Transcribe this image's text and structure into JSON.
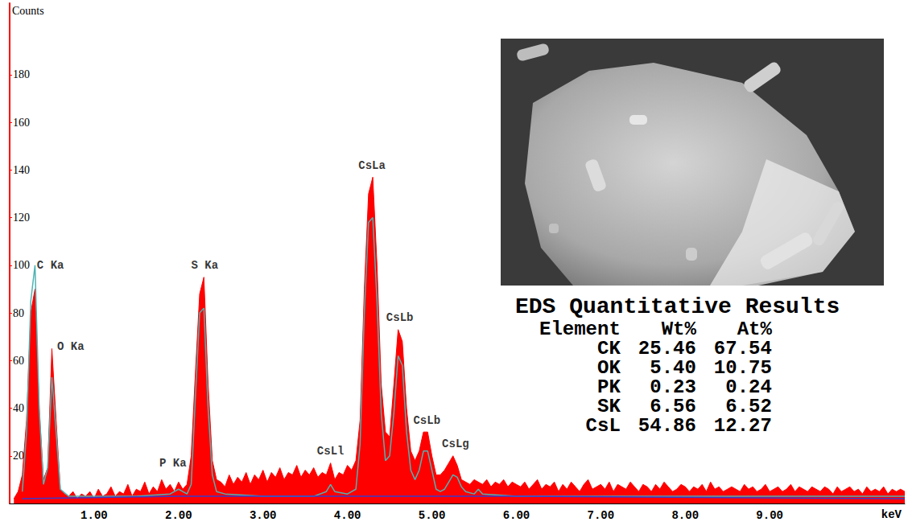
{
  "chart_data": {
    "type": "line",
    "xlabel": "keV",
    "ylabel": "Counts",
    "xlim": [
      0,
      10.6
    ],
    "ylim": [
      0,
      210
    ],
    "xticks": [
      {
        "value": 1,
        "label": "1.00"
      },
      {
        "value": 2,
        "label": "2.00"
      },
      {
        "value": 3,
        "label": "3.00"
      },
      {
        "value": 4,
        "label": "4.00"
      },
      {
        "value": 5,
        "label": "5.00"
      },
      {
        "value": 6,
        "label": "6.00"
      },
      {
        "value": 7,
        "label": "7.00"
      },
      {
        "value": 8,
        "label": "8.00"
      },
      {
        "value": 9,
        "label": "9.00"
      }
    ],
    "yticks": [
      20,
      40,
      60,
      80,
      100,
      120,
      140,
      160,
      180
    ],
    "grid": false,
    "series": [
      {
        "type": "area",
        "color": "#ff0000",
        "x": [
          0.05,
          0.1,
          0.15,
          0.2,
          0.25,
          0.3,
          0.35,
          0.4,
          0.45,
          0.5,
          0.55,
          0.6,
          0.65,
          0.7,
          0.75,
          0.8,
          0.85,
          0.9,
          0.95,
          1.0,
          1.05,
          1.1,
          1.15,
          1.2,
          1.25,
          1.3,
          1.35,
          1.4,
          1.45,
          1.5,
          1.55,
          1.6,
          1.65,
          1.7,
          1.75,
          1.8,
          1.85,
          1.9,
          1.95,
          2.0,
          2.05,
          2.1,
          2.15,
          2.2,
          2.25,
          2.3,
          2.35,
          2.4,
          2.45,
          2.5,
          2.55,
          2.6,
          2.65,
          2.7,
          2.75,
          2.8,
          2.85,
          2.9,
          2.95,
          3.0,
          3.05,
          3.1,
          3.15,
          3.2,
          3.25,
          3.3,
          3.35,
          3.4,
          3.45,
          3.5,
          3.55,
          3.6,
          3.65,
          3.7,
          3.75,
          3.8,
          3.85,
          3.9,
          3.95,
          4.0,
          4.05,
          4.1,
          4.15,
          4.2,
          4.25,
          4.3,
          4.35,
          4.4,
          4.45,
          4.5,
          4.55,
          4.6,
          4.65,
          4.7,
          4.75,
          4.8,
          4.85,
          4.9,
          4.95,
          5.0,
          5.05,
          5.1,
          5.15,
          5.2,
          5.25,
          5.3,
          5.35,
          5.4,
          5.45,
          5.5,
          5.55,
          5.6,
          5.65,
          5.7,
          5.75,
          5.8,
          5.85,
          5.9,
          5.95,
          6.0,
          6.05,
          6.1,
          6.15,
          6.2,
          6.25,
          6.3,
          6.35,
          6.4,
          6.45,
          6.5,
          6.55,
          6.6,
          6.65,
          6.7,
          6.75,
          6.8,
          6.85,
          6.9,
          6.95,
          7.0,
          7.05,
          7.1,
          7.15,
          7.2,
          7.25,
          7.3,
          7.35,
          7.4,
          7.45,
          7.5,
          7.55,
          7.6,
          7.65,
          7.7,
          7.75,
          7.8,
          7.85,
          7.9,
          7.95,
          8.0,
          8.05,
          8.1,
          8.15,
          8.2,
          8.25,
          8.3,
          8.35,
          8.4,
          8.45,
          8.5,
          8.55,
          8.6,
          8.65,
          8.7,
          8.75,
          8.8,
          8.85,
          8.9,
          8.95,
          9.0,
          9.05,
          9.1,
          9.15,
          9.2,
          9.25,
          9.3,
          9.35,
          9.4,
          9.45,
          9.5,
          9.55,
          9.6,
          9.65,
          9.7,
          9.75,
          9.8,
          9.85,
          9.9,
          9.95,
          10.0,
          10.05,
          10.1,
          10.15,
          10.2,
          10.25,
          10.3,
          10.35,
          10.4,
          10.45,
          10.5,
          10.55,
          10.6
        ],
        "values": [
          2,
          5,
          12,
          35,
          80,
          90,
          40,
          10,
          15,
          65,
          35,
          6,
          4,
          3,
          5,
          2,
          4,
          3,
          5,
          2,
          6,
          3,
          4,
          7,
          3,
          5,
          4,
          8,
          3,
          6,
          5,
          9,
          4,
          7,
          5,
          10,
          6,
          8,
          5,
          9,
          6,
          8,
          20,
          55,
          88,
          95,
          50,
          18,
          10,
          9,
          7,
          12,
          8,
          11,
          9,
          13,
          8,
          12,
          10,
          14,
          9,
          13,
          11,
          15,
          10,
          13,
          12,
          16,
          11,
          14,
          12,
          15,
          11,
          13,
          12,
          17,
          10,
          13,
          12,
          16,
          14,
          18,
          35,
          90,
          130,
          137,
          100,
          50,
          30,
          28,
          50,
          73,
          68,
          40,
          22,
          18,
          22,
          30,
          30,
          20,
          12,
          12,
          14,
          17,
          20,
          16,
          10,
          9,
          8,
          10,
          9,
          8,
          10,
          7,
          9,
          8,
          10,
          7,
          9,
          8,
          7,
          9,
          6,
          8,
          10,
          6,
          8,
          7,
          9,
          5,
          8,
          6,
          9,
          7,
          5,
          8,
          10,
          6,
          7,
          8,
          6,
          9,
          5,
          8,
          7,
          6,
          9,
          7,
          5,
          8,
          7,
          5,
          8,
          6,
          9,
          7,
          5,
          6,
          8,
          7,
          5,
          7,
          6,
          8,
          5,
          9,
          6,
          7,
          5,
          6,
          7,
          6,
          5,
          8,
          6,
          7,
          5,
          6,
          8,
          5,
          6,
          7,
          5,
          6,
          8,
          5,
          7,
          6,
          5,
          7,
          6,
          5,
          7,
          6,
          4,
          7,
          5,
          6,
          7,
          5,
          6,
          4,
          7,
          5,
          6,
          5,
          7,
          4,
          6,
          5,
          6,
          5
        ]
      },
      {
        "type": "line",
        "color": "#4fb3b3",
        "x": [
          0.15,
          0.2,
          0.25,
          0.3,
          0.35,
          0.4,
          0.45,
          0.5,
          0.55,
          0.6,
          0.7,
          1.0,
          1.5,
          1.9,
          2.0,
          2.1,
          2.15,
          2.2,
          2.25,
          2.3,
          2.35,
          2.4,
          2.45,
          2.55,
          3.0,
          3.6,
          3.75,
          3.8,
          3.85,
          4.0,
          4.1,
          4.15,
          4.2,
          4.25,
          4.3,
          4.35,
          4.4,
          4.45,
          4.5,
          4.55,
          4.6,
          4.65,
          4.7,
          4.75,
          4.8,
          4.85,
          4.9,
          4.95,
          5.0,
          5.05,
          5.1,
          5.15,
          5.2,
          5.25,
          5.3,
          5.35,
          5.4,
          5.5,
          5.55,
          5.6,
          6.0,
          10.6
        ],
        "values": [
          5,
          30,
          85,
          100,
          40,
          8,
          15,
          53,
          30,
          6,
          3,
          3,
          3,
          4,
          6,
          4,
          8,
          45,
          80,
          82,
          40,
          12,
          5,
          4,
          3,
          3,
          5,
          8,
          5,
          4,
          6,
          25,
          80,
          118,
          120,
          85,
          38,
          18,
          20,
          38,
          62,
          58,
          30,
          14,
          10,
          14,
          22,
          22,
          14,
          6,
          5,
          6,
          9,
          12,
          11,
          7,
          5,
          4,
          6,
          4,
          3,
          3
        ]
      },
      {
        "type": "line",
        "color": "#3a3acc",
        "x": [
          0.15,
          2.0,
          4.0,
          6.0,
          10.6
        ],
        "values": [
          2,
          3,
          3,
          3,
          2
        ]
      }
    ],
    "annotations": [
      {
        "text": "C Ka",
        "x": 0.28,
        "y": 100
      },
      {
        "text": "O Ka",
        "x": 0.52,
        "y": 66
      },
      {
        "text": "P Ka",
        "x": 2.01,
        "y": 13
      },
      {
        "text": "S Ka",
        "x": 2.31,
        "y": 96
      },
      {
        "text": "CsLl",
        "x": 3.8,
        "y": 18
      },
      {
        "text": "CsLa",
        "x": 4.29,
        "y": 138
      },
      {
        "text": "CsLb",
        "x": 4.62,
        "y": 74
      },
      {
        "text": "CsLb",
        "x": 4.94,
        "y": 31
      },
      {
        "text": "CsLg",
        "x": 5.28,
        "y": 21
      }
    ]
  },
  "table": {
    "title": "EDS Quantitative Results",
    "columns": [
      "Element",
      "Wt%",
      "At%"
    ],
    "rows": [
      [
        "CK",
        "25.46",
        "67.54"
      ],
      [
        "OK",
        "5.40",
        "10.75"
      ],
      [
        "PK",
        "0.23",
        "0.24"
      ],
      [
        "SK",
        "6.56",
        "6.52"
      ],
      [
        "CsL",
        "54.86",
        "12.27"
      ]
    ]
  }
}
